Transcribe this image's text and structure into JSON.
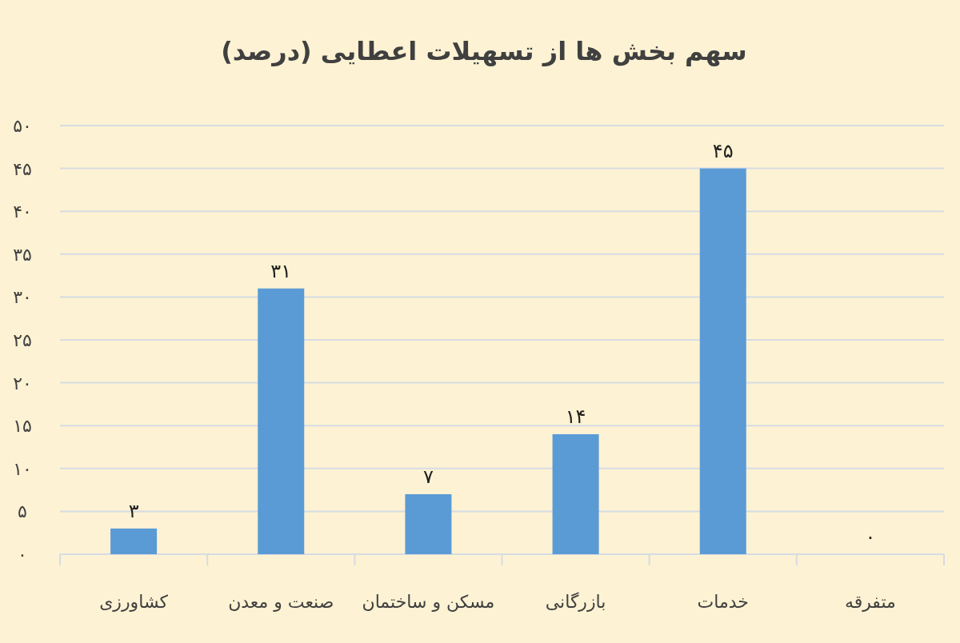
{
  "chart_data": {
    "type": "bar",
    "title": "سهم بخش ها از تسهیلات اعطایی (درصد)",
    "categories": [
      "کشاورزی",
      "صنعت و معدن",
      "مسکن و ساختمان",
      "بازرگانی",
      "خدمات",
      "متفرقه"
    ],
    "values": [
      3,
      31,
      7,
      14,
      45,
      0
    ],
    "value_labels": [
      "۳",
      "۳۱",
      "۷",
      "۱۴",
      "۴۵",
      "۰"
    ],
    "color": "#5b9bd5",
    "ylim": [
      0,
      50
    ],
    "yticks": [
      {
        "value": 0,
        "label": "۰"
      },
      {
        "value": 5,
        "label": "۵"
      },
      {
        "value": 10,
        "label": "۱۰"
      },
      {
        "value": 15,
        "label": "۱۵"
      },
      {
        "value": 20,
        "label": "۲۰"
      },
      {
        "value": 25,
        "label": "۲۵"
      },
      {
        "value": 30,
        "label": "۳۰"
      },
      {
        "value": 35,
        "label": "۳۵"
      },
      {
        "value": 40,
        "label": "۴۰"
      },
      {
        "value": 45,
        "label": "۴۵"
      },
      {
        "value": 50,
        "label": "۵۰"
      }
    ],
    "grid": "y"
  }
}
